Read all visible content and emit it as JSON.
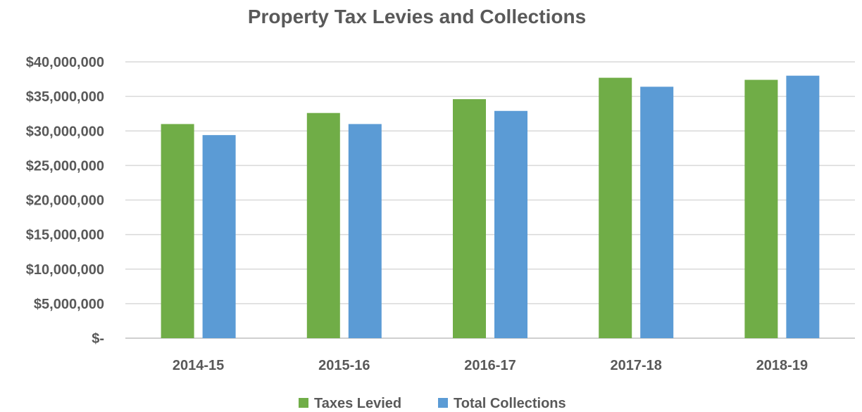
{
  "chart_data": {
    "type": "bar",
    "title": "Property Tax Levies and Collections",
    "xlabel": "",
    "ylabel": "",
    "categories": [
      "2014-15",
      "2015-16",
      "2016-17",
      "2017-18",
      "2018-19"
    ],
    "series": [
      {
        "name": "Taxes Levied",
        "color": "#70ad47",
        "values": [
          31000000,
          32600000,
          34600000,
          37700000,
          37400000
        ]
      },
      {
        "name": "Total Collections",
        "color": "#5b9bd5",
        "values": [
          29400000,
          31000000,
          32900000,
          36400000,
          38000000
        ]
      }
    ],
    "ylim": [
      0,
      40000000
    ],
    "y_ticks": [
      0,
      5000000,
      10000000,
      15000000,
      20000000,
      25000000,
      30000000,
      35000000,
      40000000
    ],
    "y_tick_labels": [
      "$-",
      "$5,000,000",
      "$10,000,000",
      "$15,000,000",
      "$20,000,000",
      "$25,000,000",
      "$30,000,000",
      "$35,000,000",
      "$40,000,000"
    ],
    "grid": true,
    "legend_position": "bottom"
  }
}
